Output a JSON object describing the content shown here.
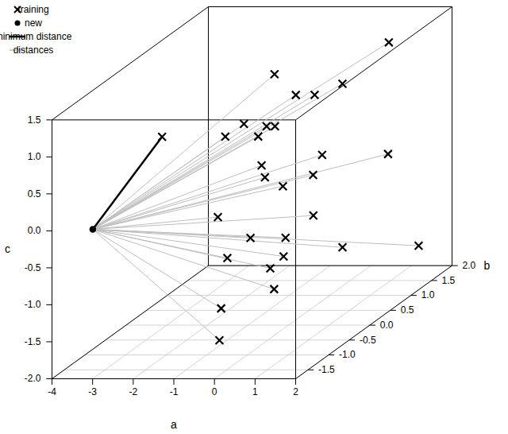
{
  "chart_data": {
    "type": "scatter3d",
    "x_label": "a",
    "y_label": "b",
    "z_label": "c",
    "xlim": [
      -4,
      2
    ],
    "ylim": [
      -1.8,
      2
    ],
    "zlim": [
      -2,
      1.5
    ],
    "xticks": [
      -4,
      -3,
      -2,
      -1,
      0,
      1,
      2
    ],
    "yticks": [
      {
        "value": -1.5,
        "label": "-1.5"
      },
      {
        "value": -1,
        "label": "-1.0"
      },
      {
        "value": -0.5,
        "label": "-0.5"
      },
      {
        "value": 0,
        "label": "0.0"
      },
      {
        "value": 0.5,
        "label": "0.5"
      },
      {
        "value": 1,
        "label": "1.0"
      },
      {
        "value": 1.5,
        "label": "1.5"
      },
      {
        "value": 2,
        "label": "2.0"
      }
    ],
    "zticks": [
      {
        "value": -2,
        "label": "-2.0"
      },
      {
        "value": -1.5,
        "label": "-1.5"
      },
      {
        "value": -1,
        "label": "-1.0"
      },
      {
        "value": -0.5,
        "label": "-0.5"
      },
      {
        "value": 0,
        "label": "0.0"
      },
      {
        "value": 0.5,
        "label": "0.5"
      },
      {
        "value": 1,
        "label": "1.0"
      },
      {
        "value": 1.5,
        "label": "1.5"
      }
    ],
    "grid": true,
    "legend": "top-left",
    "series": [
      {
        "name": "training",
        "marker": "x",
        "color": "#000000",
        "x": [
          0.95,
          -1.56,
          -0.63,
          -0.37,
          -0.09,
          -1.3,
          -0.54,
          -0.03,
          -1.05,
          -1.05,
          0.22,
          0.83,
          -0.46,
          0.23,
          0.2,
          0.47,
          -1.84,
          -0.3,
          -0.53,
          -0.58,
          0.62,
          1.38,
          -0.29,
          -0.02,
          0.26,
          0.76,
          -0.24,
          -0.08,
          -2.1
        ],
        "y": [
          1.5,
          1.2,
          0.8,
          1.0,
          1.4,
          0.2,
          0.0,
          -0.3,
          -0.5,
          0.3,
          0.6,
          1.6,
          -0.2,
          -0.8,
          0.4,
          -0.6,
          0.1,
          0.9,
          -0.4,
          0.5,
          0.7,
          1.8,
          -1.2,
          -0.1,
          -0.7,
          -1.1,
          -1.4,
          -1.6,
          -1.0
        ],
        "z": [
          1.22,
          0.91,
          0.79,
          0.71,
          0.7,
          0.64,
          0.69,
          0.81,
          0.75,
          0.43,
          0.06,
          -0.33,
          0.24,
          0.32,
          -0.13,
          0.12,
          -0.58,
          -0.88,
          -0.66,
          -1.02,
          -1.23,
          -1.65,
          -0.61,
          -1.03,
          -0.95,
          -1.07,
          -1.21,
          -1.56,
          0.95
        ]
      },
      {
        "name": "new",
        "marker": "dot",
        "color": "#000000",
        "x": [
          -3.3
        ],
        "y": [
          -1.5
        ],
        "z": [
          -0.1
        ]
      }
    ],
    "lines": [
      {
        "name": "minimum distance",
        "color": "#000000"
      },
      {
        "name": "distances",
        "color": "#bebebe"
      }
    ]
  }
}
